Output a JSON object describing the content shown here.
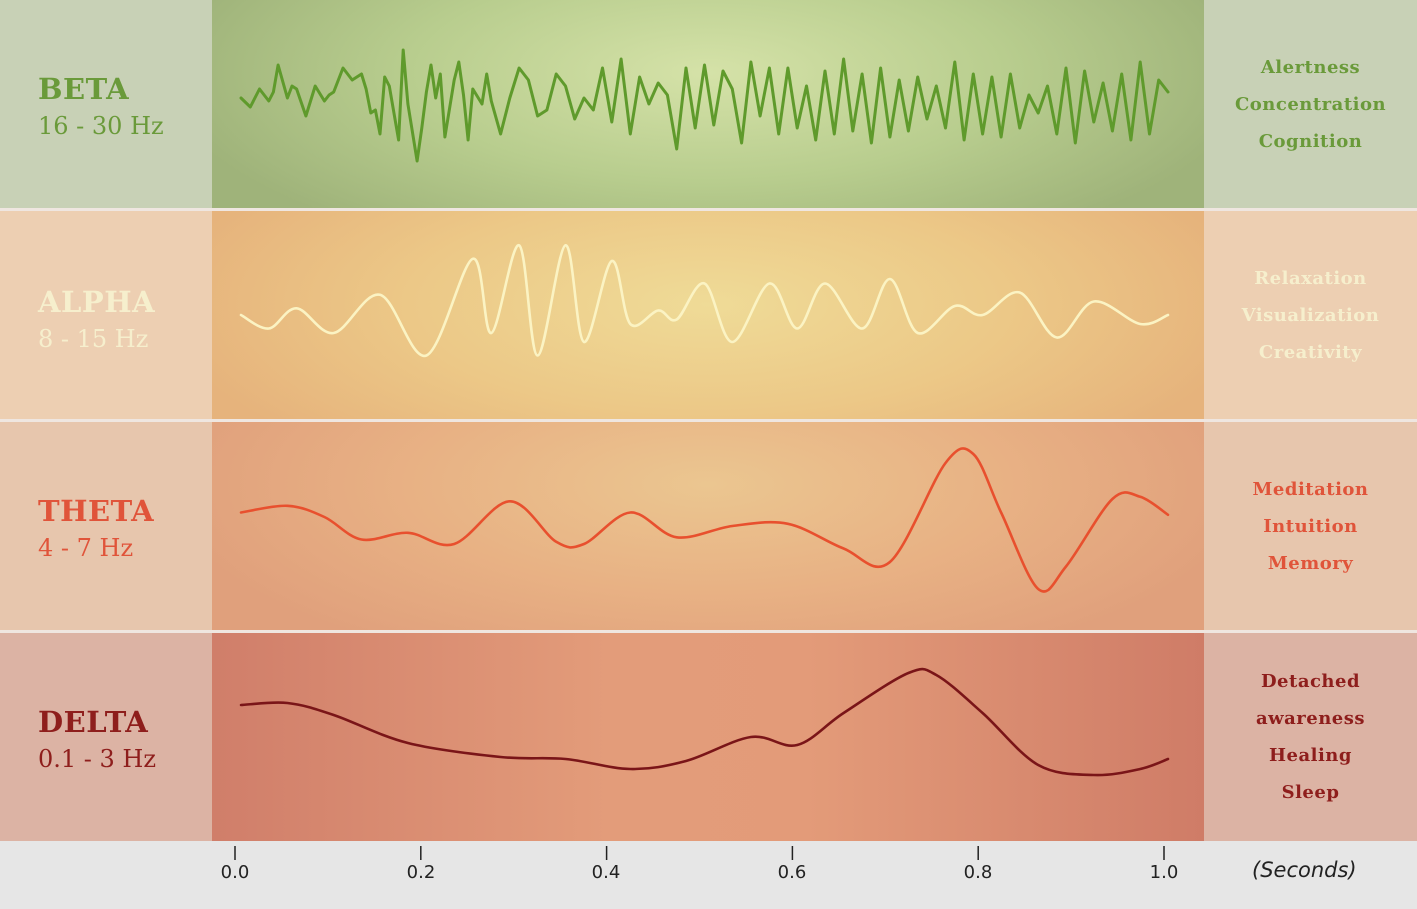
{
  "chart_data": {
    "type": "line",
    "xlabel": "(Seconds)",
    "xlim": [
      0.0,
      1.0
    ],
    "x_ticks": [
      "0.0",
      "0.2",
      "0.4",
      "0.6",
      "0.8",
      "1.0"
    ],
    "grid": false,
    "series": [
      {
        "name": "BETA",
        "range": "16 - 30 Hz",
        "effects": [
          "Alertness",
          "Concentration",
          "Cognition"
        ],
        "color": "#6a9a3a",
        "line_color": "#5f9a2c",
        "x": [
          0.0,
          0.01,
          0.02,
          0.03,
          0.035,
          0.04,
          0.05,
          0.055,
          0.06,
          0.07,
          0.08,
          0.09,
          0.095,
          0.1,
          0.11,
          0.12,
          0.13,
          0.135,
          0.14,
          0.145,
          0.15,
          0.155,
          0.16,
          0.17,
          0.175,
          0.18,
          0.19,
          0.195,
          0.2,
          0.205,
          0.21,
          0.215,
          0.22,
          0.23,
          0.235,
          0.24,
          0.245,
          0.25,
          0.26,
          0.265,
          0.27,
          0.28,
          0.29,
          0.3,
          0.31,
          0.32,
          0.33,
          0.34,
          0.35,
          0.36,
          0.37,
          0.38,
          0.39,
          0.4,
          0.41,
          0.42,
          0.43,
          0.44,
          0.45,
          0.46,
          0.47,
          0.48,
          0.49,
          0.5,
          0.51,
          0.52,
          0.53,
          0.54,
          0.55,
          0.56,
          0.57,
          0.58,
          0.59,
          0.6,
          0.61,
          0.62,
          0.63,
          0.64,
          0.65,
          0.66,
          0.67,
          0.68,
          0.69,
          0.7,
          0.71,
          0.72,
          0.73,
          0.74,
          0.75,
          0.76,
          0.77,
          0.78,
          0.79,
          0.8,
          0.81,
          0.82,
          0.83,
          0.84,
          0.85,
          0.86,
          0.87,
          0.88,
          0.89,
          0.9,
          0.91,
          0.92,
          0.93,
          0.94,
          0.95,
          0.96,
          0.97,
          0.98,
          0.99,
          1.0
        ],
        "y": [
          0.2,
          -0.1,
          0.5,
          0.1,
          0.4,
          1.3,
          0.2,
          0.6,
          0.5,
          -0.4,
          0.6,
          0.1,
          0.3,
          0.4,
          1.2,
          0.8,
          1.0,
          0.5,
          -0.3,
          -0.2,
          -1.0,
          0.9,
          0.6,
          -1.2,
          1.8,
          0.0,
          -1.9,
          -0.8,
          0.4,
          1.3,
          0.2,
          1.0,
          -1.1,
          0.8,
          1.4,
          0.3,
          -1.2,
          0.5,
          0.0,
          1.0,
          0.1,
          -1.0,
          0.2,
          1.2,
          0.8,
          -0.4,
          -0.2,
          1.0,
          0.6,
          -0.5,
          0.2,
          -0.2,
          1.2,
          -0.6,
          1.5,
          -1.0,
          0.9,
          0.0,
          0.7,
          0.3,
          -1.5,
          1.2,
          -0.8,
          1.3,
          -0.7,
          1.1,
          0.5,
          -1.3,
          1.4,
          -0.4,
          1.2,
          -1.0,
          1.2,
          -0.8,
          0.6,
          -1.2,
          1.1,
          -1.0,
          1.5,
          -0.9,
          1.0,
          -1.3,
          1.2,
          -1.1,
          0.8,
          -0.9,
          0.9,
          -0.5,
          0.6,
          -0.8,
          1.4,
          -1.2,
          1.0,
          -1.0,
          0.9,
          -1.1,
          1.0,
          -0.8,
          0.3,
          -0.3,
          0.6,
          -1.0,
          1.2,
          -1.3,
          1.1,
          -0.6,
          0.7,
          -0.9,
          1.0,
          -1.2,
          1.4,
          -1.0,
          0.8,
          0.4
        ],
        "ylim": [
          -2.6,
          2.6
        ]
      },
      {
        "name": "ALPHA",
        "range": "8 - 15 Hz",
        "effects": [
          "Relaxation",
          "Visualization",
          "Creativity"
        ],
        "color": "#f6efcd",
        "line_color": "#fbf3c3",
        "x": [
          0.0,
          0.03,
          0.06,
          0.1,
          0.15,
          0.2,
          0.25,
          0.27,
          0.3,
          0.32,
          0.35,
          0.37,
          0.4,
          0.42,
          0.45,
          0.47,
          0.5,
          0.53,
          0.57,
          0.6,
          0.63,
          0.67,
          0.7,
          0.73,
          0.77,
          0.8,
          0.84,
          0.88,
          0.92,
          0.97,
          1.0
        ],
        "y": [
          0.0,
          -0.3,
          0.15,
          -0.4,
          0.45,
          -0.9,
          1.25,
          -0.4,
          1.55,
          -0.9,
          1.55,
          -0.6,
          1.2,
          -0.2,
          0.1,
          -0.1,
          0.7,
          -0.6,
          0.7,
          -0.3,
          0.7,
          -0.3,
          0.8,
          -0.4,
          0.2,
          0.0,
          0.5,
          -0.5,
          0.3,
          -0.2,
          0.0
        ],
        "ylim": [
          -2.0,
          2.0
        ]
      },
      {
        "name": "THETA",
        "range": "4 - 7 Hz",
        "effects": [
          "Meditation",
          "Intuition",
          "Memory"
        ],
        "color": "#e0543a",
        "line_color": "#e8502e",
        "x": [
          0.0,
          0.05,
          0.09,
          0.13,
          0.18,
          0.23,
          0.29,
          0.34,
          0.37,
          0.42,
          0.47,
          0.53,
          0.59,
          0.65,
          0.7,
          0.76,
          0.79,
          0.82,
          0.86,
          0.89,
          0.94,
          0.97,
          1.0
        ],
        "y": [
          0.3,
          0.45,
          0.2,
          -0.3,
          -0.15,
          -0.4,
          0.55,
          -0.35,
          -0.4,
          0.3,
          -0.25,
          0.0,
          0.05,
          -0.5,
          -0.8,
          1.4,
          1.6,
          0.3,
          -1.4,
          -0.9,
          0.6,
          0.65,
          0.25
        ],
        "ylim": [
          -2.0,
          2.0
        ]
      },
      {
        "name": "DELTA",
        "range": "0.1 - 3 Hz",
        "effects": [
          "Detached awareness",
          "Healing",
          "Sleep"
        ],
        "effects_display": [
          "Detached",
          "awareness",
          "Healing",
          "Sleep"
        ],
        "color": "#8e1e1c",
        "line_color": "#7a1518",
        "x": [
          0.0,
          0.05,
          0.1,
          0.18,
          0.28,
          0.35,
          0.42,
          0.48,
          0.55,
          0.6,
          0.65,
          0.72,
          0.75,
          0.8,
          0.86,
          0.92,
          0.97,
          1.0
        ],
        "y": [
          0.8,
          0.85,
          0.55,
          -0.15,
          -0.5,
          -0.55,
          -0.8,
          -0.6,
          0.0,
          -0.2,
          0.6,
          1.6,
          1.55,
          0.6,
          -0.7,
          -0.95,
          -0.8,
          -0.55
        ],
        "ylim": [
          -2.0,
          2.0
        ]
      }
    ]
  }
}
